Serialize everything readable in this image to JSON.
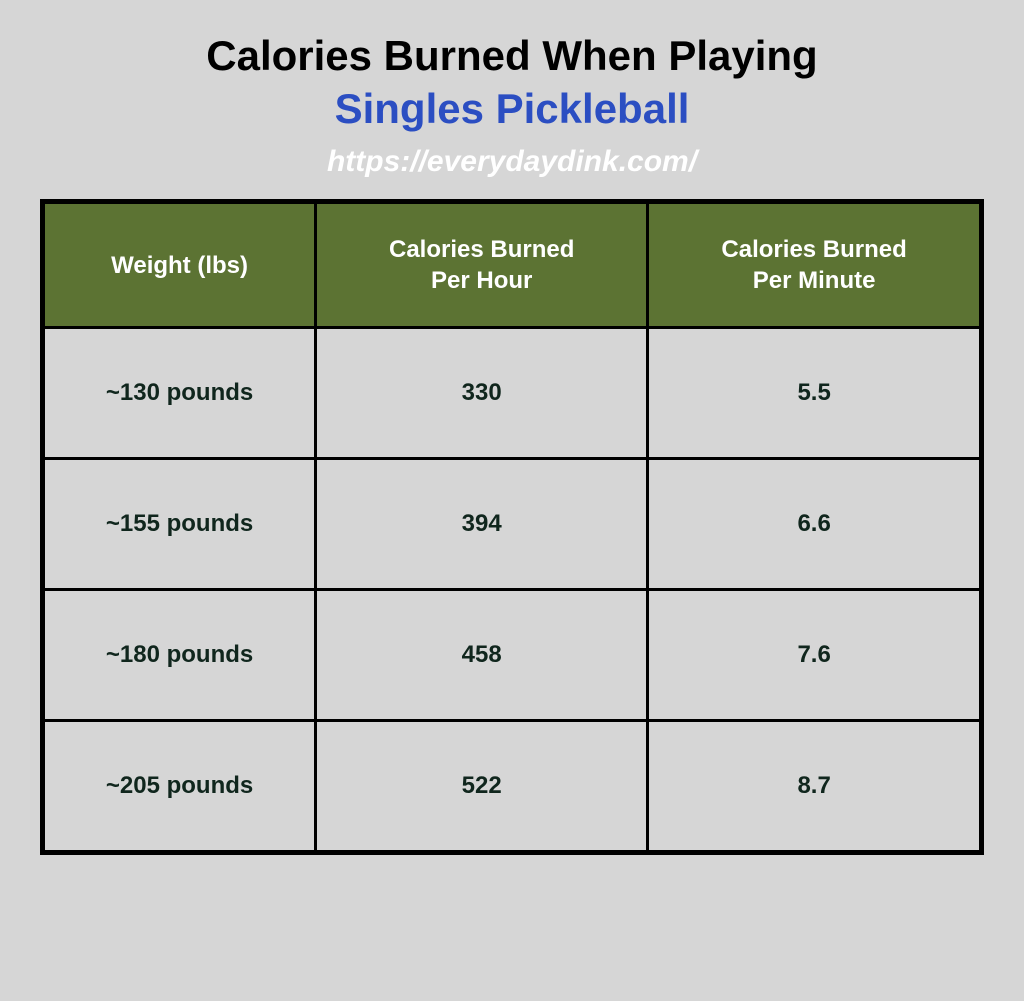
{
  "title": {
    "line1": "Calories Burned When Playing",
    "line2": "Singles Pickleball",
    "line2_color": "#2b4ec2",
    "url": "https://everydaydink.com/",
    "url_color": "#ffffff"
  },
  "table": {
    "header_bg": "#5c7333",
    "header_text_color": "#ffffff",
    "cell_bg": "#d6d6d6",
    "cell_text_color": "#10261d",
    "border_color": "#000000",
    "columns": [
      "Weight (lbs)",
      "Calories Burned\nPer Hour",
      "Calories Burned\nPer Minute"
    ],
    "rows": [
      {
        "weight": "~130 pounds",
        "per_hour": "330",
        "per_minute": "5.5"
      },
      {
        "weight": "~155 pounds",
        "per_hour": "394",
        "per_minute": "6.6"
      },
      {
        "weight": "~180 pounds",
        "per_hour": "458",
        "per_minute": "7.6"
      },
      {
        "weight": "~205 pounds",
        "per_hour": "522",
        "per_minute": "8.7"
      }
    ]
  },
  "background_color": "#d6d6d6"
}
